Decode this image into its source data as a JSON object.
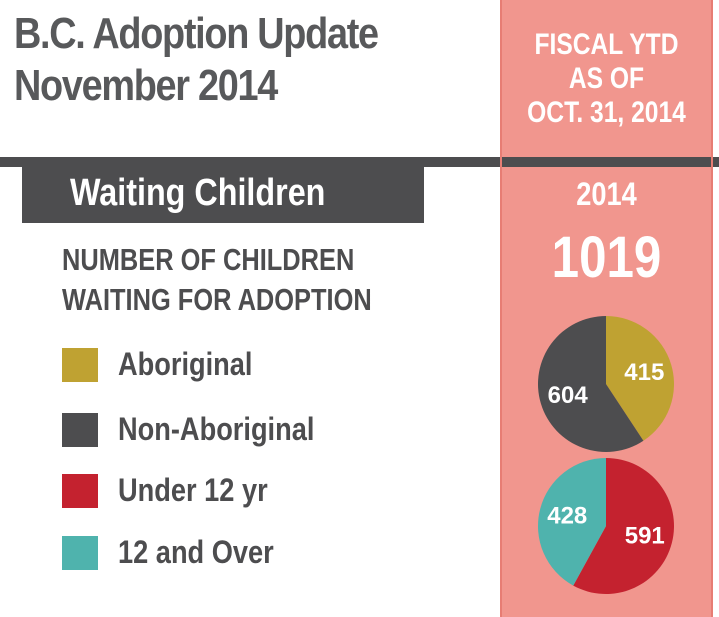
{
  "header": {
    "title_line1": "B.C. Adoption Update",
    "title_line2": "November 2014"
  },
  "panel": {
    "header_line1": "FISCAL YTD",
    "header_line2": "AS OF",
    "header_line3": "OCT. 31, 2014",
    "year": "2014",
    "total": "1019"
  },
  "section": {
    "title": "Waiting Children",
    "subtitle_line1": "NUMBER OF CHILDREN",
    "subtitle_line2": "WAITING FOR ADOPTION"
  },
  "legend": [
    {
      "label": "Aboriginal",
      "color": "#bfa232"
    },
    {
      "label": "Non-Aboriginal",
      "color": "#4d4d4f"
    },
    {
      "label": "Under 12 yr",
      "color": "#c4222f"
    },
    {
      "label": "12 and Over",
      "color": "#4fb3ad"
    }
  ],
  "chart_data": [
    {
      "type": "pie",
      "year": "2014",
      "total": 1019,
      "slices": [
        {
          "name": "Aboriginal",
          "value": 415,
          "color": "#bfa232"
        },
        {
          "name": "Non-Aboriginal",
          "value": 604,
          "color": "#4d4d4f"
        }
      ]
    },
    {
      "type": "pie",
      "year": "2014",
      "total": 1019,
      "slices": [
        {
          "name": "Under 12 yr",
          "value": 591,
          "color": "#c4222f"
        },
        {
          "name": "12 and Over",
          "value": 428,
          "color": "#4fb3ad"
        }
      ]
    }
  ]
}
